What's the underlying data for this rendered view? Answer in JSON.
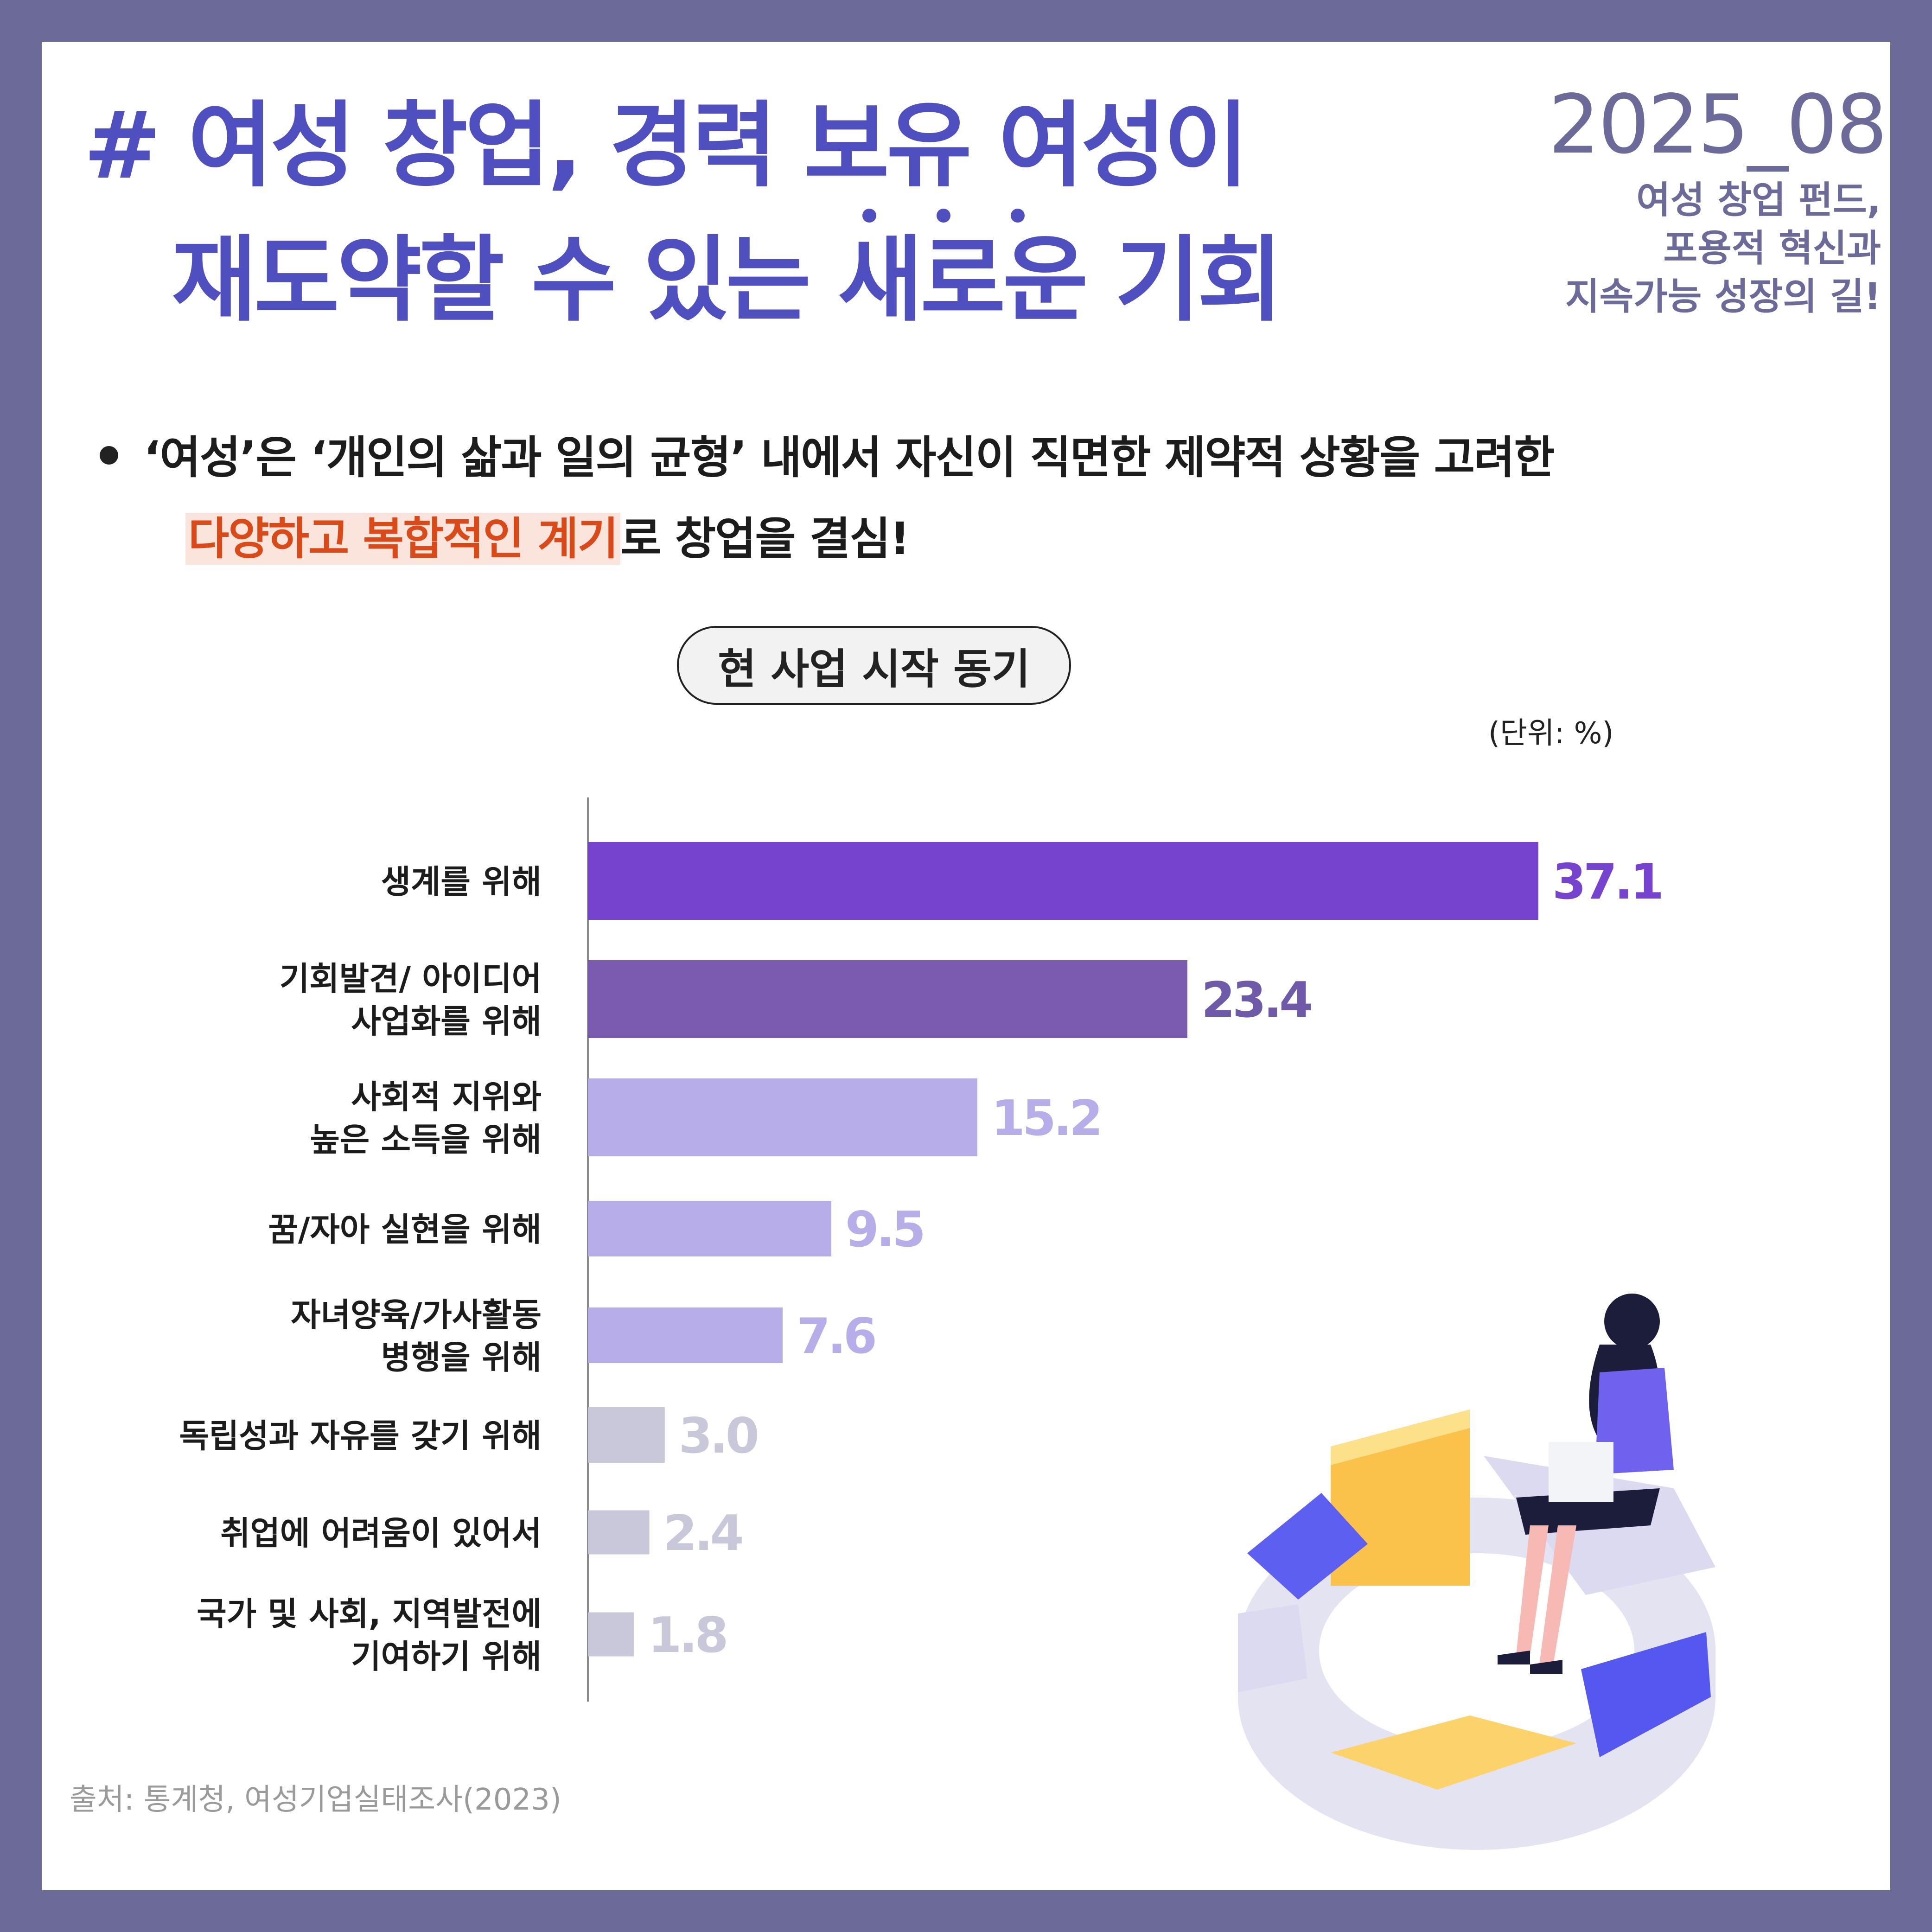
{
  "header": {
    "title_line1": "# 여성 창업, 경력 보유 여성이",
    "title_line2": "재도약할 수 있는 새로운 기회",
    "date": "2025_08",
    "subtitle_lines": [
      "여성 창업 펀드,",
      "포용적 혁신과",
      "지속가능 성장의 길!"
    ]
  },
  "bullet": {
    "line1": "‘여성’은 ‘개인의 삶과 일의 균형’ 내에서 자신이 직면한 제약적 상황을 고려한",
    "highlight": "다양하고 복합적인 계기",
    "line2_rest": "로 창업을 결심!"
  },
  "colors": {
    "title": "#4f4fbf",
    "highlight_text": "#d94a18",
    "highlight_bg": "#fae4db"
  },
  "chart_data": {
    "type": "bar",
    "orientation": "horizontal",
    "title": "현 사업 시작 동기",
    "unit_label": "(단위: %)",
    "categories": [
      [
        "생계를 위해"
      ],
      [
        "기회발견/ 아이디어",
        "사업화를 위해"
      ],
      [
        "사회적 지위와",
        "높은 소득을 위해"
      ],
      [
        "꿈/자아 실현을 위해"
      ],
      [
        "자녀양육/가사활동",
        "병행을 위해"
      ],
      [
        "독립성과 자유를 갖기 위해"
      ],
      [
        "취업에 어려움이 있어서"
      ],
      [
        "국가 및 사회, 지역발전에",
        "기여하기 위해"
      ]
    ],
    "values": [
      37.1,
      23.4,
      15.2,
      9.5,
      7.6,
      3.0,
      2.4,
      1.8
    ],
    "value_labels": [
      "37.1",
      "23.4",
      "15.2",
      "9.5",
      "7.6",
      "3.0",
      "2.4",
      "1.8"
    ],
    "bar_colors": [
      "#7643cf",
      "#7a5bb0",
      "#b7ade9",
      "#b7ade9",
      "#b7ade9",
      "#c9c8da",
      "#c9c8da",
      "#c9c8da"
    ],
    "label_colors": [
      "#7643cf",
      "#6e5aa8",
      "#b7ade9",
      "#b7ade9",
      "#b7ade9",
      "#c9c8da",
      "#c9c8da",
      "#c9c8da"
    ]
  },
  "source": "출처: 통계청, 여성기업실태조사(2023)"
}
